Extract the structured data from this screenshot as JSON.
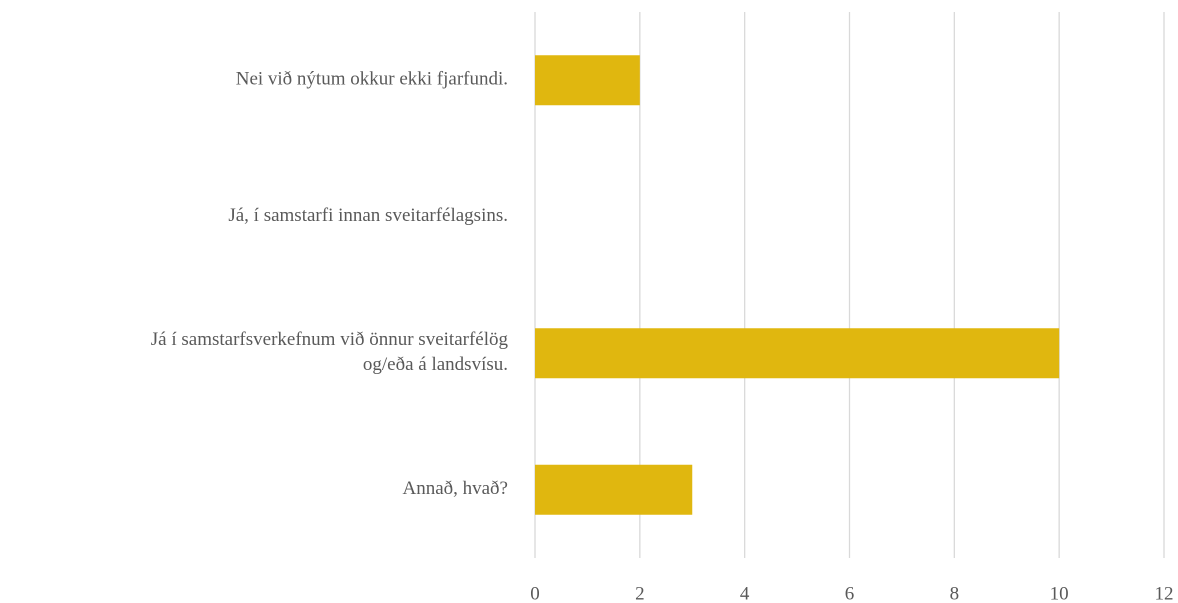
{
  "chart_data": {
    "type": "barh",
    "categories": [
      "Nei við nýtum okkur ekki fjarfundi.",
      "Já, í samstarfi innan sveitarfélagsins.",
      "Já í samstarfsverkefnum við önnur sveitarfélög\nog/eða á landsvísu.",
      "Annað, hvað?"
    ],
    "values": [
      2,
      0,
      10,
      3
    ],
    "color": "#e0b70f",
    "xlim": [
      0,
      12
    ],
    "xticks": [
      0,
      2,
      4,
      6,
      8,
      10,
      12
    ],
    "grid": true
  }
}
